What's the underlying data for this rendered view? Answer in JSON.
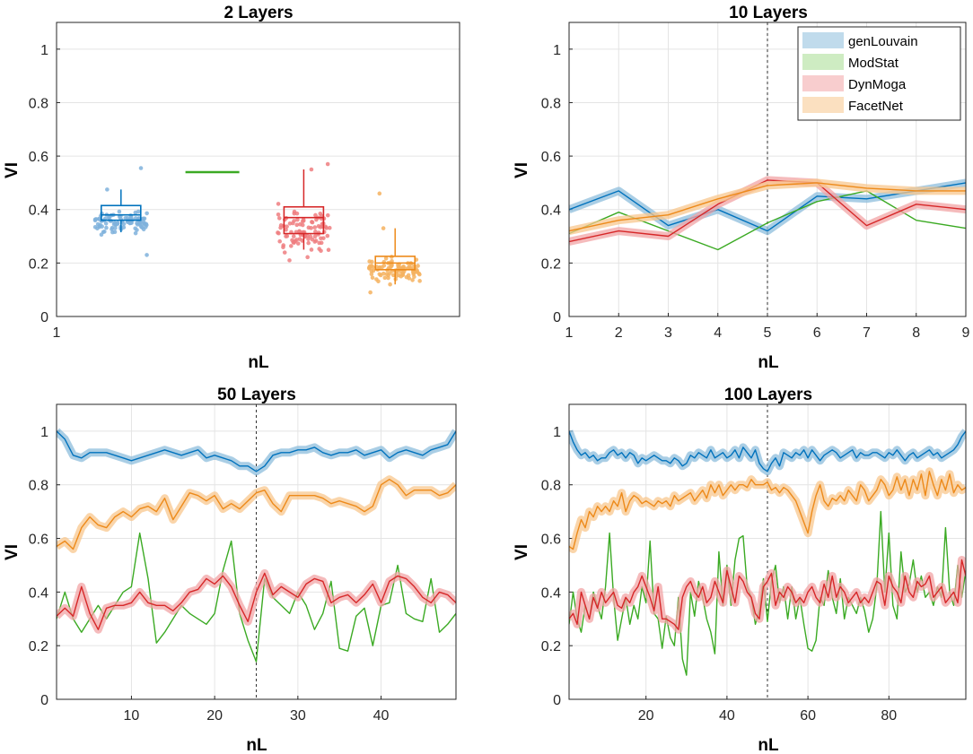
{
  "chart_data": [
    {
      "type": "boxplot",
      "title": "2 Layers",
      "xlabel": "nL",
      "ylabel": "VI",
      "xticks": [
        1
      ],
      "ylim": [
        0,
        1.1
      ],
      "yticks": [
        0,
        0.2,
        0.4,
        0.6,
        0.8,
        1
      ],
      "yticklabels": [
        "0",
        "0.2",
        "0.4",
        "0.6",
        "0.8",
        "1"
      ],
      "series": [
        {
          "name": "genLouvain",
          "color": "#0072BD",
          "point_color": "#7FB2DC",
          "q1": 0.36,
          "median": 0.38,
          "q3": 0.415,
          "whisker_low": 0.315,
          "whisker_high": 0.475,
          "min": 0.23,
          "max": 0.555
        },
        {
          "name": "ModStat",
          "color": "#3BAA23",
          "point_color": "#3BAA23",
          "q1": 0.54,
          "median": 0.54,
          "q3": 0.54,
          "whisker_low": 0.54,
          "whisker_high": 0.54,
          "min": 0.54,
          "max": 0.54
        },
        {
          "name": "DynMoga",
          "color": "#D62728",
          "point_color": "#EE7E80",
          "q1": 0.31,
          "median": 0.37,
          "q3": 0.41,
          "whisker_low": 0.25,
          "whisker_high": 0.55,
          "min": 0.21,
          "max": 0.57
        },
        {
          "name": "FacetNet",
          "color": "#ED8A1A",
          "point_color": "#F5B25F",
          "q1": 0.175,
          "median": 0.2,
          "q3": 0.225,
          "whisker_low": 0.12,
          "whisker_high": 0.33,
          "min": 0.09,
          "max": 0.46
        }
      ]
    },
    {
      "type": "line",
      "title": "10 Layers",
      "xlabel": "nL",
      "ylabel": "VI",
      "xlim": [
        1,
        9
      ],
      "ylim": [
        0,
        1.1
      ],
      "xticks": [
        1,
        2,
        3,
        4,
        5,
        6,
        7,
        8,
        9
      ],
      "yticks": [
        0,
        0.2,
        0.4,
        0.6,
        0.8,
        1
      ],
      "yticklabels": [
        "0",
        "0.2",
        "0.4",
        "0.6",
        "0.8",
        "1"
      ],
      "vline": 5,
      "legend": [
        "genLouvain",
        "ModStat",
        "DynMoga",
        "FacetNet"
      ],
      "x": [
        1,
        2,
        3,
        4,
        5,
        6,
        7,
        8,
        9
      ],
      "series": [
        {
          "name": "genLouvain",
          "color": "#0072BD",
          "band_color": "#8DBEDC",
          "values": [
            0.4,
            0.47,
            0.34,
            0.4,
            0.32,
            0.45,
            0.44,
            0.47,
            0.5
          ]
        },
        {
          "name": "ModStat",
          "color": "#3BAA23",
          "band_color": "#A6DC90",
          "values": [
            0.31,
            0.39,
            0.32,
            0.25,
            0.35,
            0.43,
            0.47,
            0.36,
            0.33
          ]
        },
        {
          "name": "DynMoga",
          "color": "#D62728",
          "band_color": "#F2A4A6",
          "values": [
            0.28,
            0.32,
            0.3,
            0.42,
            0.51,
            0.5,
            0.34,
            0.42,
            0.4
          ]
        },
        {
          "name": "FacetNet",
          "color": "#ED8A1A",
          "band_color": "#F8C78D",
          "values": [
            0.32,
            0.36,
            0.38,
            0.44,
            0.49,
            0.5,
            0.48,
            0.47,
            0.47
          ]
        }
      ]
    },
    {
      "type": "line",
      "title": "50 Layers",
      "xlabel": "nL",
      "ylabel": "VI",
      "xlim": [
        1,
        49
      ],
      "ylim": [
        0,
        1.1
      ],
      "xticks": [
        10,
        20,
        30,
        40
      ],
      "yticks": [
        0,
        0.2,
        0.4,
        0.6,
        0.8,
        1
      ],
      "yticklabels": [
        "0",
        "0.2",
        "0.4",
        "0.6",
        "0.8",
        "1"
      ],
      "vline": 25,
      "x_start": 1,
      "series": [
        {
          "name": "genLouvain",
          "color": "#0072BD",
          "band_color": "#8DBEDC",
          "values": [
            1.0,
            0.97,
            0.91,
            0.9,
            0.92,
            0.92,
            0.92,
            0.91,
            0.9,
            0.89,
            0.9,
            0.91,
            0.92,
            0.93,
            0.92,
            0.91,
            0.92,
            0.93,
            0.9,
            0.91,
            0.9,
            0.89,
            0.87,
            0.87,
            0.85,
            0.87,
            0.91,
            0.92,
            0.92,
            0.93,
            0.93,
            0.94,
            0.92,
            0.91,
            0.92,
            0.92,
            0.93,
            0.91,
            0.92,
            0.93,
            0.9,
            0.92,
            0.93,
            0.92,
            0.91,
            0.93,
            0.94,
            0.95,
            1.0
          ]
        },
        {
          "name": "ModStat",
          "color": "#3BAA23",
          "band_color": "#A6DC90",
          "values": [
            0.3,
            0.4,
            0.3,
            0.25,
            0.3,
            0.35,
            0.3,
            0.35,
            0.4,
            0.42,
            0.62,
            0.45,
            0.21,
            0.25,
            0.3,
            0.35,
            0.32,
            0.3,
            0.28,
            0.32,
            0.48,
            0.59,
            0.32,
            0.22,
            0.14,
            0.45,
            0.38,
            0.35,
            0.32,
            0.4,
            0.35,
            0.26,
            0.32,
            0.44,
            0.19,
            0.18,
            0.31,
            0.34,
            0.2,
            0.35,
            0.36,
            0.5,
            0.32,
            0.3,
            0.29,
            0.45,
            0.25,
            0.28,
            0.32
          ]
        },
        {
          "name": "DynMoga",
          "color": "#D62728",
          "band_color": "#F2A4A6",
          "values": [
            0.31,
            0.34,
            0.31,
            0.42,
            0.32,
            0.26,
            0.34,
            0.35,
            0.35,
            0.36,
            0.4,
            0.36,
            0.35,
            0.35,
            0.33,
            0.36,
            0.4,
            0.41,
            0.45,
            0.43,
            0.46,
            0.42,
            0.35,
            0.29,
            0.4,
            0.47,
            0.39,
            0.42,
            0.4,
            0.38,
            0.43,
            0.45,
            0.44,
            0.36,
            0.38,
            0.39,
            0.36,
            0.39,
            0.43,
            0.36,
            0.44,
            0.46,
            0.45,
            0.42,
            0.38,
            0.36,
            0.4,
            0.39,
            0.36
          ]
        },
        {
          "name": "FacetNet",
          "color": "#ED8A1A",
          "band_color": "#F8C78D",
          "values": [
            0.57,
            0.59,
            0.56,
            0.64,
            0.68,
            0.65,
            0.64,
            0.68,
            0.7,
            0.68,
            0.71,
            0.72,
            0.7,
            0.75,
            0.67,
            0.72,
            0.77,
            0.76,
            0.74,
            0.76,
            0.71,
            0.73,
            0.71,
            0.74,
            0.77,
            0.78,
            0.73,
            0.7,
            0.76,
            0.76,
            0.76,
            0.76,
            0.75,
            0.73,
            0.74,
            0.73,
            0.72,
            0.7,
            0.72,
            0.8,
            0.82,
            0.8,
            0.76,
            0.78,
            0.78,
            0.78,
            0.76,
            0.77,
            0.8
          ]
        }
      ]
    },
    {
      "type": "line",
      "title": "100 Layers",
      "xlabel": "nL",
      "ylabel": "VI",
      "xlim": [
        1,
        99
      ],
      "ylim": [
        0,
        1.1
      ],
      "xticks": [
        20,
        40,
        60,
        80
      ],
      "yticks": [
        0,
        0.2,
        0.4,
        0.6,
        0.8,
        1
      ],
      "yticklabels": [
        "0",
        "0.2",
        "0.4",
        "0.6",
        "0.8",
        "1"
      ],
      "vline": 50,
      "x_start": 1,
      "series": [
        {
          "name": "genLouvain",
          "color": "#0072BD",
          "band_color": "#8DBEDC",
          "values": [
            1.0,
            0.96,
            0.93,
            0.91,
            0.92,
            0.9,
            0.91,
            0.89,
            0.9,
            0.9,
            0.92,
            0.93,
            0.91,
            0.92,
            0.9,
            0.92,
            0.91,
            0.88,
            0.9,
            0.89,
            0.9,
            0.91,
            0.9,
            0.89,
            0.89,
            0.88,
            0.9,
            0.89,
            0.87,
            0.88,
            0.91,
            0.9,
            0.92,
            0.91,
            0.9,
            0.93,
            0.9,
            0.91,
            0.92,
            0.9,
            0.91,
            0.93,
            0.9,
            0.94,
            0.92,
            0.9,
            0.93,
            0.88,
            0.86,
            0.85,
            0.88,
            0.9,
            0.87,
            0.92,
            0.91,
            0.9,
            0.92,
            0.91,
            0.93,
            0.9,
            0.93,
            0.91,
            0.89,
            0.91,
            0.92,
            0.93,
            0.92,
            0.9,
            0.91,
            0.92,
            0.93,
            0.9,
            0.92,
            0.91,
            0.91,
            0.92,
            0.92,
            0.91,
            0.9,
            0.92,
            0.91,
            0.93,
            0.91,
            0.89,
            0.91,
            0.92,
            0.9,
            0.91,
            0.92,
            0.93,
            0.91,
            0.92,
            0.9,
            0.91,
            0.92,
            0.93,
            0.95,
            0.98,
            1.0
          ]
        },
        {
          "name": "ModStat",
          "color": "#3BAA23",
          "band_color": "#A6DC90",
          "values": [
            0.28,
            0.4,
            0.3,
            0.25,
            0.35,
            0.3,
            0.4,
            0.35,
            0.3,
            0.42,
            0.62,
            0.38,
            0.22,
            0.3,
            0.38,
            0.28,
            0.35,
            0.3,
            0.42,
            0.36,
            0.59,
            0.32,
            0.3,
            0.19,
            0.31,
            0.23,
            0.2,
            0.38,
            0.15,
            0.09,
            0.4,
            0.31,
            0.44,
            0.38,
            0.3,
            0.25,
            0.17,
            0.55,
            0.35,
            0.5,
            0.35,
            0.52,
            0.6,
            0.61,
            0.42,
            0.38,
            0.28,
            0.33,
            0.45,
            0.29,
            0.44,
            0.5,
            0.36,
            0.42,
            0.3,
            0.42,
            0.3,
            0.38,
            0.28,
            0.19,
            0.18,
            0.22,
            0.38,
            0.35,
            0.48,
            0.38,
            0.32,
            0.45,
            0.3,
            0.38,
            0.35,
            0.32,
            0.38,
            0.33,
            0.25,
            0.3,
            0.42,
            0.7,
            0.4,
            0.62,
            0.35,
            0.3,
            0.55,
            0.4,
            0.43,
            0.52,
            0.4,
            0.46,
            0.38,
            0.4,
            0.35,
            0.42,
            0.38,
            0.64,
            0.4,
            0.35,
            0.5,
            0.38,
            0.48
          ]
        },
        {
          "name": "DynMoga",
          "color": "#D62728",
          "band_color": "#F2A4A6",
          "values": [
            0.3,
            0.32,
            0.28,
            0.4,
            0.35,
            0.3,
            0.38,
            0.34,
            0.4,
            0.36,
            0.38,
            0.4,
            0.35,
            0.34,
            0.38,
            0.36,
            0.4,
            0.42,
            0.46,
            0.42,
            0.38,
            0.33,
            0.42,
            0.3,
            0.3,
            0.29,
            0.28,
            0.26,
            0.38,
            0.42,
            0.44,
            0.4,
            0.38,
            0.42,
            0.36,
            0.38,
            0.44,
            0.4,
            0.36,
            0.48,
            0.42,
            0.36,
            0.46,
            0.44,
            0.4,
            0.38,
            0.32,
            0.3,
            0.42,
            0.44,
            0.47,
            0.35,
            0.4,
            0.38,
            0.42,
            0.4,
            0.36,
            0.38,
            0.36,
            0.4,
            0.42,
            0.38,
            0.36,
            0.43,
            0.38,
            0.46,
            0.38,
            0.42,
            0.4,
            0.36,
            0.38,
            0.4,
            0.36,
            0.38,
            0.36,
            0.4,
            0.44,
            0.43,
            0.35,
            0.46,
            0.42,
            0.4,
            0.36,
            0.46,
            0.4,
            0.38,
            0.44,
            0.42,
            0.43,
            0.46,
            0.38,
            0.4,
            0.42,
            0.36,
            0.38,
            0.4,
            0.36,
            0.52,
            0.46
          ]
        },
        {
          "name": "FacetNet",
          "color": "#ED8A1A",
          "band_color": "#F8C78D",
          "values": [
            0.57,
            0.56,
            0.62,
            0.67,
            0.64,
            0.7,
            0.68,
            0.72,
            0.7,
            0.72,
            0.7,
            0.74,
            0.72,
            0.77,
            0.7,
            0.74,
            0.76,
            0.75,
            0.73,
            0.74,
            0.73,
            0.72,
            0.74,
            0.73,
            0.74,
            0.72,
            0.76,
            0.74,
            0.75,
            0.76,
            0.77,
            0.74,
            0.76,
            0.78,
            0.75,
            0.8,
            0.77,
            0.8,
            0.76,
            0.78,
            0.8,
            0.78,
            0.8,
            0.8,
            0.79,
            0.82,
            0.8,
            0.8,
            0.8,
            0.81,
            0.78,
            0.79,
            0.77,
            0.79,
            0.78,
            0.76,
            0.74,
            0.7,
            0.66,
            0.62,
            0.7,
            0.76,
            0.8,
            0.74,
            0.72,
            0.75,
            0.74,
            0.76,
            0.74,
            0.78,
            0.76,
            0.74,
            0.8,
            0.78,
            0.74,
            0.76,
            0.78,
            0.82,
            0.8,
            0.76,
            0.78,
            0.83,
            0.78,
            0.82,
            0.76,
            0.82,
            0.78,
            0.84,
            0.76,
            0.85,
            0.8,
            0.76,
            0.82,
            0.78,
            0.84,
            0.77,
            0.8,
            0.78,
            0.79
          ]
        }
      ]
    }
  ]
}
